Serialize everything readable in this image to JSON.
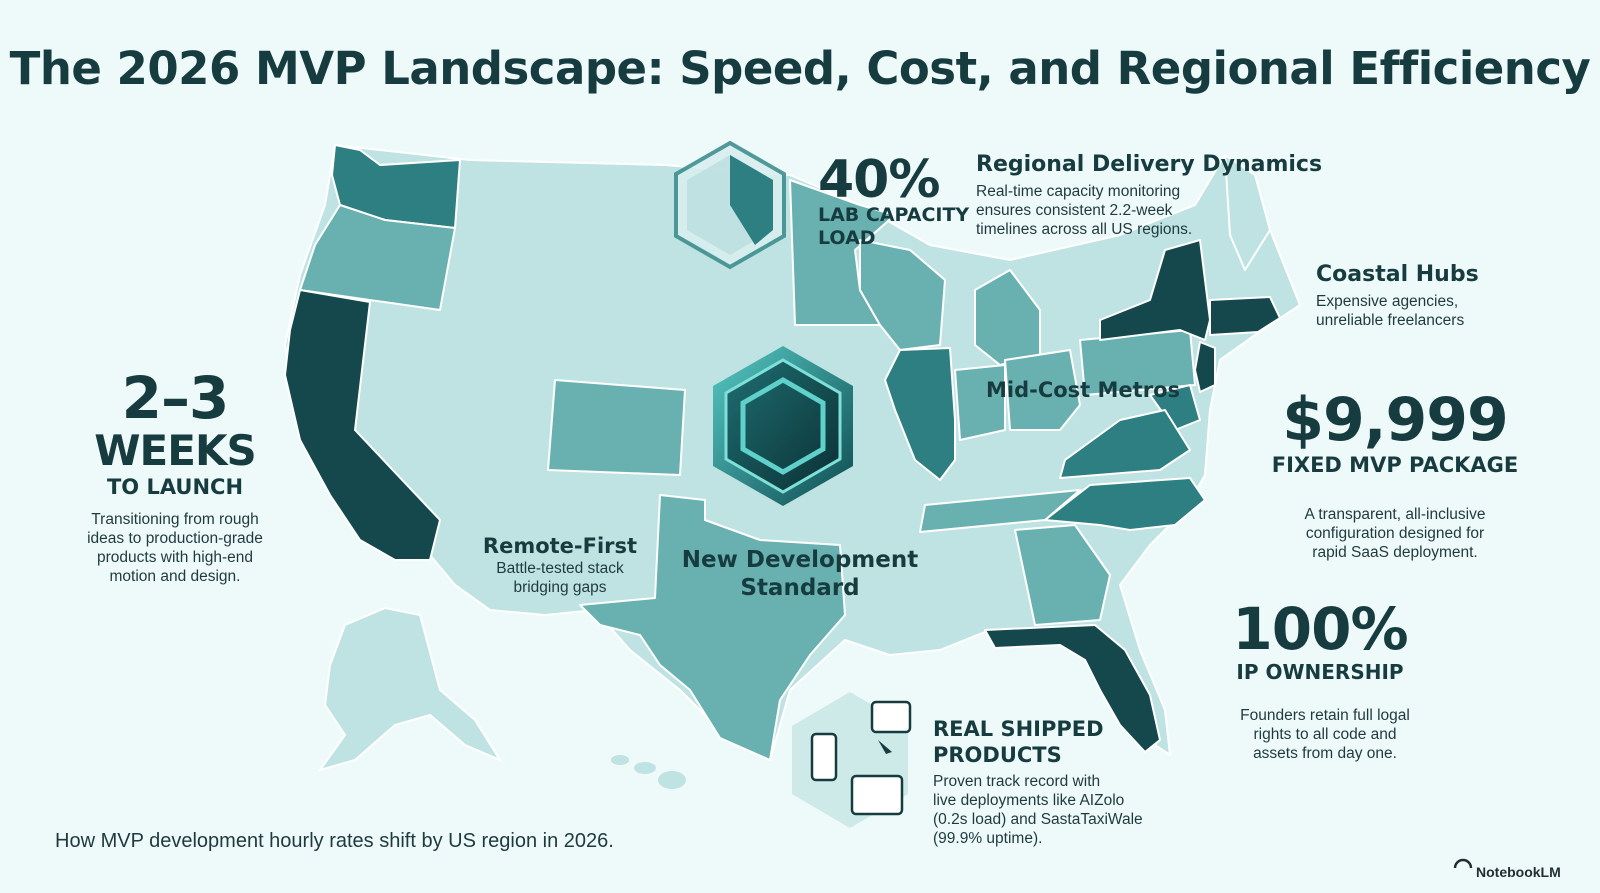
{
  "title": "The 2026 MVP Landscape: Speed, Cost, and Regional Efficiency",
  "colors": {
    "background": "#eef9fa",
    "tier_light": "#bfe3e2",
    "tier_mid": "#69b1b0",
    "tier_dark": "#2e7f82",
    "tier_darkest": "#15484c",
    "text": "#173c40"
  },
  "lab_capacity": {
    "value": "40%",
    "label_line1": "LAB CAPACITY",
    "label_line2": "LOAD",
    "gauge_fill": 0.4
  },
  "regional": {
    "heading": "Regional Delivery Dynamics",
    "body_lines": [
      "Real-time capacity monitoring",
      "ensures consistent 2.2-week",
      "timelines across all US regions."
    ]
  },
  "coastal": {
    "heading": "Coastal Hubs",
    "body_lines": [
      "Expensive agencies,",
      "unreliable freelancers"
    ]
  },
  "mid_cost": {
    "heading": "Mid-Cost Metros"
  },
  "weeks": {
    "value_line1": "2–3",
    "value_line2": "WEEKS",
    "sub": "TO LAUNCH",
    "body_lines": [
      "Transitioning from rough",
      "ideas to production-grade",
      "products with high-end",
      "motion and design."
    ]
  },
  "remote": {
    "heading": "Remote-First",
    "body_lines": [
      "Battle-tested stack",
      "bridging gaps"
    ]
  },
  "standard": {
    "line1": "New Development",
    "line2": "Standard",
    "icon": "hexagon-badge-icon"
  },
  "price": {
    "value": "$9,999",
    "sub": "FIXED MVP PACKAGE",
    "body_lines": [
      "A transparent, all-inclusive",
      "configuration designed for",
      "rapid SaaS deployment."
    ]
  },
  "ip": {
    "value": "100%",
    "sub": "IP OWNERSHIP",
    "body_lines": [
      "Founders retain full logal",
      "rights to all code and",
      "assets from day one."
    ]
  },
  "shipped": {
    "heading_line1": "REAL SHIPPED",
    "heading_line2": "PRODUCTS",
    "body_lines": [
      "Proven track record with",
      "live deployments like AIZolo",
      "(0.2s load) and SastaTaxiWale",
      "(99.9% uptime)."
    ],
    "icon": "devices-icon"
  },
  "caption": "How MVP development hourly rates shift by US region in 2026.",
  "brand": "NotebookLM"
}
